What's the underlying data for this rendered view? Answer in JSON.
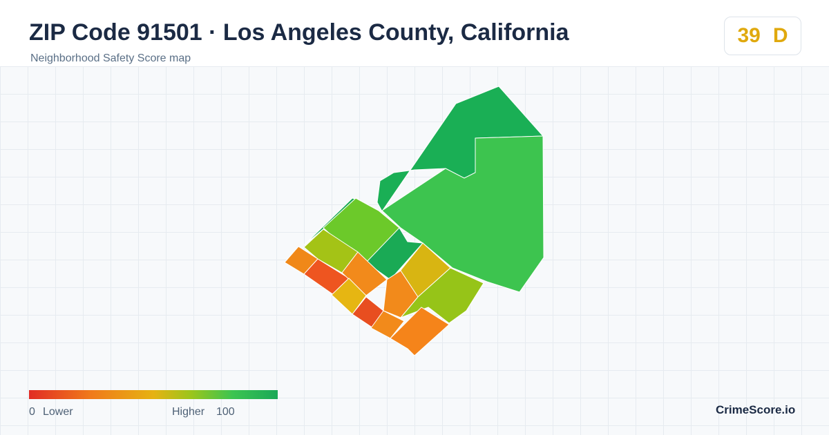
{
  "header": {
    "title": "ZIP Code 91501 · Los Angeles County, California",
    "subtitle": "Neighborhood Safety Score map"
  },
  "score": {
    "value": "39",
    "grade": "D"
  },
  "legend": {
    "min": "0",
    "min_label": "Lower",
    "max_label": "Higher",
    "max": "100"
  },
  "brand": "CrimeScore.io"
}
